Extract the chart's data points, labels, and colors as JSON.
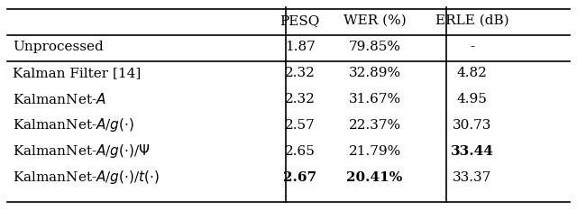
{
  "col_headers": [
    "",
    "PESQ",
    "WER (%)",
    "ERLE (dB)"
  ],
  "rows": [
    {
      "label": "Unprocessed",
      "pesq": "1.87",
      "wer": "79.85%",
      "erle": "-",
      "bold_pesq": false,
      "bold_wer": false,
      "bold_erle": false
    },
    {
      "label": "Kalman Filter [14]",
      "pesq": "2.32",
      "wer": "32.89%",
      "erle": "4.82",
      "bold_pesq": false,
      "bold_wer": false,
      "bold_erle": false
    },
    {
      "label": "KalmanNet-$A$",
      "pesq": "2.32",
      "wer": "31.67%",
      "erle": "4.95",
      "bold_pesq": false,
      "bold_wer": false,
      "bold_erle": false
    },
    {
      "label": "KalmanNet-$A$/$g(\\cdot)$",
      "pesq": "2.57",
      "wer": "22.37%",
      "erle": "30.73",
      "bold_pesq": false,
      "bold_wer": false,
      "bold_erle": false
    },
    {
      "label": "KalmanNet-$A$/$g(\\cdot)$/$\\Psi$",
      "pesq": "2.65",
      "wer": "21.79%",
      "erle": "33.44",
      "bold_pesq": false,
      "bold_wer": false,
      "bold_erle": true
    },
    {
      "label": "KalmanNet-$A$/$g(\\cdot)$/$t(\\cdot)$",
      "pesq": "2.67",
      "wer": "20.41%",
      "erle": "33.37",
      "bold_pesq": true,
      "bold_wer": true,
      "bold_erle": false
    }
  ],
  "separator_after": [
    0,
    1
  ],
  "background_color": "#ffffff",
  "text_color": "#000000",
  "font_size": 11,
  "header_font_size": 11
}
